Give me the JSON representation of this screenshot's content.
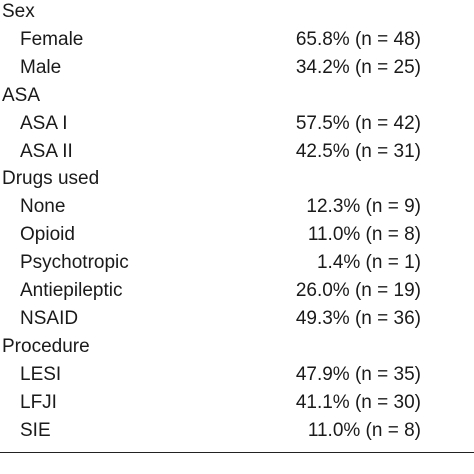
{
  "table": {
    "sections": [
      {
        "label": "Sex",
        "rows": [
          {
            "label": "Female",
            "value": "65.8% (n = 48)"
          },
          {
            "label": "Male",
            "value": "34.2% (n = 25)"
          }
        ]
      },
      {
        "label": "ASA",
        "rows": [
          {
            "label": "ASA I",
            "value": "57.5% (n = 42)"
          },
          {
            "label": "ASA II",
            "value": "42.5% (n = 31)"
          }
        ]
      },
      {
        "label": "Drugs used",
        "rows": [
          {
            "label": "None",
            "value": "12.3% (n = 9)"
          },
          {
            "label": "Opioid",
            "value": "11.0% (n = 8)"
          },
          {
            "label": "Psychotropic",
            "value": "1.4% (n = 1)"
          },
          {
            "label": "Antiepileptic",
            "value": "26.0% (n = 19)"
          },
          {
            "label": "NSAID",
            "value": "49.3% (n = 36)"
          }
        ]
      },
      {
        "label": "Procedure",
        "rows": [
          {
            "label": "LESI",
            "value": "47.9% (n = 35)"
          },
          {
            "label": "LFJI",
            "value": "41.1% (n = 30)"
          },
          {
            "label": "SIE",
            "value": "11.0% (n = 8)"
          }
        ]
      }
    ]
  }
}
